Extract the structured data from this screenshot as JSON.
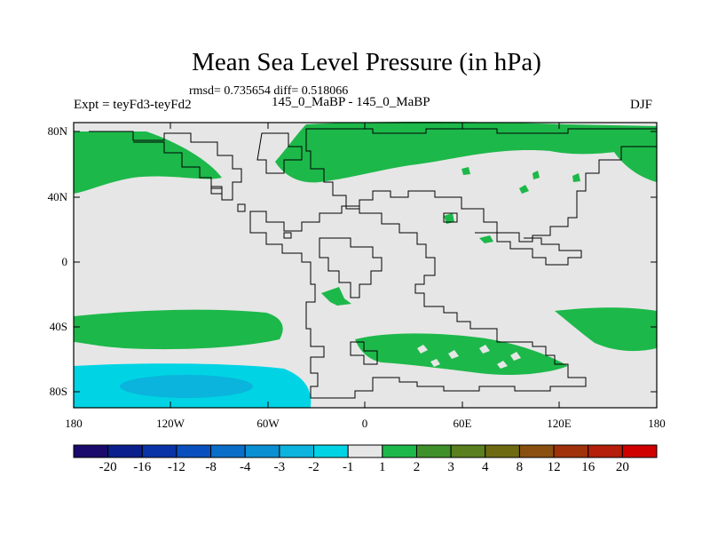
{
  "title": "Mean Sea Level Pressure (in hPa)",
  "stats": "rmsd= 0.735654 diff= 0.518066",
  "experiment": "Expt = teyFd3-teyFd2",
  "period": "145_0_MaBP - 145_0_MaBP",
  "season": "DJF",
  "lat_labels": [
    "80N",
    "40N",
    "0",
    "40S",
    "80S"
  ],
  "lon_labels": [
    "180",
    "120W",
    "60W",
    "0",
    "60E",
    "120E",
    "180"
  ],
  "colorbar": {
    "labels": [
      "-20",
      "-16",
      "-12",
      "-8",
      "-4",
      "-3",
      "-2",
      "-1",
      "1",
      "2",
      "3",
      "4",
      "8",
      "12",
      "16",
      "20"
    ],
    "colors": [
      "#1a0a6b",
      "#0a1e8c",
      "#0a33a8",
      "#0a4fbe",
      "#0a6ec8",
      "#0a90d2",
      "#0ab4dc",
      "#00d4e4",
      "#e6e6e6",
      "#1db84a",
      "#3f8f2a",
      "#5a7f1e",
      "#6e6a12",
      "#8a5010",
      "#a0320a",
      "#b41e0a",
      "#d00000"
    ]
  },
  "colors": {
    "background_field": "#e6e6e6",
    "positive_1_2": "#1db84a",
    "negative_1_2": "#00d4e4",
    "negative_2_3": "#0ab4dc"
  }
}
